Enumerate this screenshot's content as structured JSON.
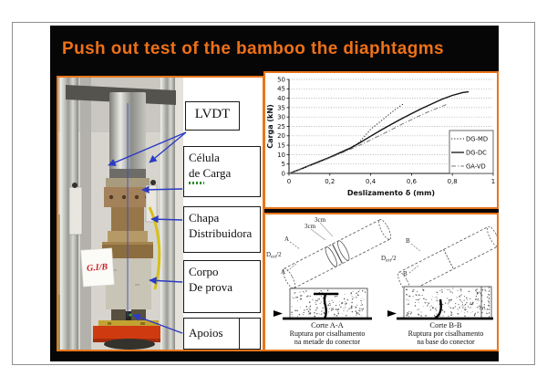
{
  "title": {
    "text": "Push out test of the bamboo the diaphtagms"
  },
  "colors": {
    "accent": "#E8761C",
    "title": "#EE7118",
    "slide_bg": "#060606",
    "arrow_blue": "#2B3BC4",
    "base_red": "#CE3A10"
  },
  "apparatus_labels": {
    "lvdt": "LVDT",
    "celula": [
      "Célula",
      "de Carga"
    ],
    "chapa": [
      "Chapa",
      "Distribuidora"
    ],
    "corpo": [
      "Corpo",
      "De prova"
    ],
    "apoios": "Apoios"
  },
  "photo": {
    "specimen_tag": "G.I/B"
  },
  "chart_data": {
    "type": "line",
    "title": "",
    "xlabel": "Deslizamento δ (mm)",
    "ylabel": "Carga (kN)",
    "xlim": [
      0,
      1
    ],
    "ylim": [
      0,
      50
    ],
    "x_ticks": [
      0,
      0.2,
      0.4,
      0.6,
      0.8,
      1
    ],
    "x_tick_labels": [
      "0",
      "0,2",
      "0,4",
      "0,6",
      "0,8",
      "1"
    ],
    "y_ticks": [
      0,
      5,
      10,
      15,
      20,
      25,
      30,
      35,
      40,
      45,
      50
    ],
    "grid": "horizontal-dotted",
    "legend_position": "lower-right",
    "series": [
      {
        "name": "DG-MD",
        "style": "dotted",
        "color": "#111111",
        "points": [
          [
            0,
            0
          ],
          [
            0.05,
            1.8
          ],
          [
            0.1,
            4
          ],
          [
            0.15,
            6.2
          ],
          [
            0.2,
            8.5
          ],
          [
            0.25,
            10.8
          ],
          [
            0.3,
            13.2
          ],
          [
            0.33,
            15
          ],
          [
            0.36,
            18.5
          ],
          [
            0.4,
            23.5
          ],
          [
            0.44,
            27
          ],
          [
            0.48,
            30.5
          ],
          [
            0.52,
            34
          ],
          [
            0.56,
            37
          ]
        ]
      },
      {
        "name": "DG-DC",
        "style": "solid",
        "color": "#111111",
        "points": [
          [
            0,
            0
          ],
          [
            0.05,
            2
          ],
          [
            0.1,
            4.2
          ],
          [
            0.15,
            6.4
          ],
          [
            0.2,
            8.6
          ],
          [
            0.25,
            11
          ],
          [
            0.3,
            13.5
          ],
          [
            0.35,
            16.5
          ],
          [
            0.4,
            19.8
          ],
          [
            0.45,
            23
          ],
          [
            0.5,
            26
          ],
          [
            0.55,
            29
          ],
          [
            0.6,
            31.8
          ],
          [
            0.65,
            34.5
          ],
          [
            0.7,
            37
          ],
          [
            0.75,
            39.5
          ],
          [
            0.8,
            41.5
          ],
          [
            0.85,
            43
          ],
          [
            0.88,
            43.4
          ]
        ]
      },
      {
        "name": "GA-VD",
        "style": "dashdot",
        "color": "#787878",
        "points": [
          [
            0,
            0
          ],
          [
            0.05,
            1.8
          ],
          [
            0.1,
            4
          ],
          [
            0.15,
            6
          ],
          [
            0.2,
            8.3
          ],
          [
            0.25,
            10.5
          ],
          [
            0.3,
            12.8
          ],
          [
            0.35,
            15.2
          ],
          [
            0.4,
            17.8
          ],
          [
            0.45,
            20.5
          ],
          [
            0.5,
            23.2
          ],
          [
            0.55,
            26
          ],
          [
            0.6,
            28.6
          ],
          [
            0.65,
            31.2
          ],
          [
            0.7,
            33.6
          ],
          [
            0.74,
            35.2
          ],
          [
            0.77,
            36.6
          ]
        ]
      }
    ]
  },
  "diagram": {
    "left": {
      "dims": [
        "3cm",
        "3cm"
      ],
      "section_top": "A",
      "section_bottom": "A",
      "radius": [
        "D",
        "ext",
        "/2"
      ],
      "caption": [
        "Corte A-A",
        "Ruptura por cisalhamento",
        "na metade do conector"
      ]
    },
    "right": {
      "section_top": "B",
      "section_bottom": "B",
      "radius": [
        "D",
        "ext",
        "/2"
      ],
      "caption": [
        "Corte B-B",
        "Ruptura por cisalhamento",
        "na base do conector"
      ]
    }
  }
}
